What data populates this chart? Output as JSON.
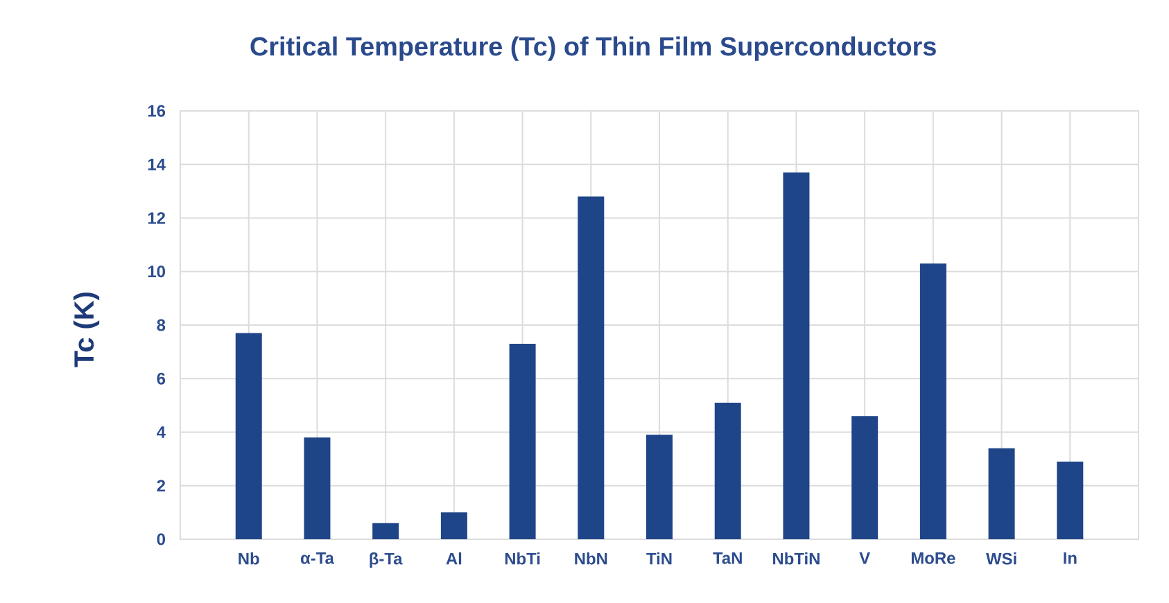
{
  "chart_data": {
    "type": "bar",
    "title": "Critical Temperature (Tc) of Thin Film Superconductors",
    "ylabel": "Tc (K)",
    "categories": [
      "Nb",
      "α-Ta",
      "β-Ta",
      "Al",
      "NbTi",
      "NbN",
      "TiN",
      "TaN",
      "NbTiN",
      "V",
      "MoRe",
      "WSi",
      "In"
    ],
    "values": [
      7.7,
      3.8,
      0.6,
      1.0,
      7.3,
      12.8,
      3.9,
      5.1,
      13.7,
      4.6,
      10.3,
      3.4,
      2.9
    ],
    "color": "#1f4589",
    "ylim": [
      0,
      16
    ],
    "yticks": [
      0,
      2,
      4,
      6,
      8,
      10,
      12,
      14,
      16
    ],
    "grid": true
  }
}
